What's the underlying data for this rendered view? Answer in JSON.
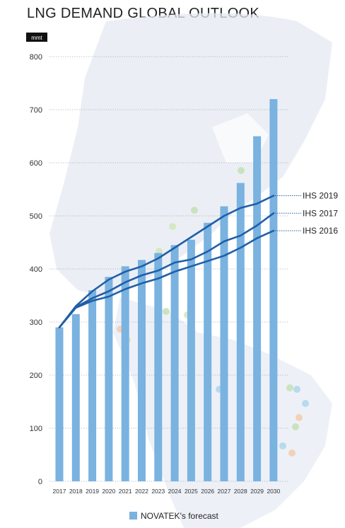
{
  "chart_data": {
    "type": "bar",
    "title": "LNG DEMAND GLOBAL OUTLOOK",
    "unit_label": "mmt",
    "categories": [
      "2017",
      "2018",
      "2019",
      "2020",
      "2021",
      "2022",
      "2023",
      "2024",
      "2025",
      "2026",
      "2027",
      "2028",
      "2029",
      "2030"
    ],
    "ylim": [
      0,
      800
    ],
    "yticks": [
      0,
      100,
      200,
      300,
      400,
      500,
      600,
      700,
      800
    ],
    "grid": "horizontal",
    "legend": "bottom",
    "colors": {
      "bars": "#7ab2e0",
      "lines": "#1f5fa8",
      "grid": "#9aa4ae",
      "map_land": "#e4eaf2"
    },
    "bars": {
      "name": "NOVATEK's forecast",
      "values": [
        290,
        315,
        360,
        385,
        405,
        417,
        430,
        445,
        455,
        487,
        518,
        562,
        650,
        720
      ]
    },
    "lines": [
      {
        "name": "IHS 2019",
        "values": [
          290,
          330,
          358,
          380,
          395,
          405,
          420,
          440,
          460,
          480,
          500,
          515,
          523,
          538
        ]
      },
      {
        "name": "IHS 2017",
        "values": [
          290,
          328,
          345,
          358,
          375,
          388,
          397,
          412,
          418,
          433,
          452,
          463,
          482,
          505
        ]
      },
      {
        "name": "IHS 2016",
        "values": [
          290,
          327,
          340,
          348,
          362,
          373,
          382,
          395,
          405,
          415,
          425,
          440,
          458,
          472
        ]
      }
    ]
  }
}
